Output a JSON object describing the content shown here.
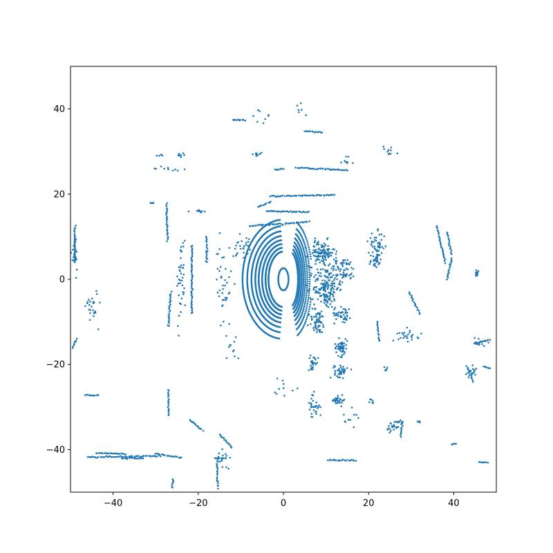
{
  "chart_data": {
    "type": "scatter",
    "title": "",
    "xlabel": "",
    "ylabel": "",
    "xlim": [
      -50,
      50
    ],
    "ylim": [
      -50,
      50
    ],
    "xticks": [
      -40,
      -20,
      0,
      20,
      40
    ],
    "yticks": [
      -40,
      -20,
      0,
      20,
      40
    ],
    "xtick_labels": [
      "−40",
      "−20",
      "0",
      "20",
      "40"
    ],
    "ytick_labels": [
      "−40",
      "−20",
      "0",
      "20",
      "40"
    ],
    "grid": false,
    "marker_color": "#1f77b4",
    "series": [
      {
        "description": "lidar point cloud (approximate)",
        "rings": {
          "center": [
            0,
            0
          ],
          "x_radii": [
            3.5,
            4.2,
            5.0,
            5.8,
            6.6,
            7.5,
            8.5,
            9.6
          ],
          "y_radii": [
            6.5,
            7.4,
            8.3,
            9.2,
            10.2,
            11.3,
            12.5,
            14.0
          ],
          "angle_range_deg": [
            95,
            265
          ]
        },
        "segments": [
          {
            "from": [
              -12,
              37.5
            ],
            "to": [
              -9,
              37.3
            ]
          },
          {
            "from": [
              5,
              34.8
            ],
            "to": [
              9,
              34.5
            ]
          },
          {
            "from": [
              3,
              26.2
            ],
            "to": [
              15,
              25.6
            ]
          },
          {
            "from": [
              -2,
              25.8
            ],
            "to": [
              0,
              25.9
            ]
          },
          {
            "from": [
              -6,
              17
            ],
            "to": [
              -3,
              18.2
            ]
          },
          {
            "from": [
              -3,
              19.5
            ],
            "to": [
              12,
              19.8
            ]
          },
          {
            "from": [
              -4,
              16
            ],
            "to": [
              6,
              15.8
            ]
          },
          {
            "from": [
              -8,
              12.5
            ],
            "to": [
              6,
              13.5
            ]
          },
          {
            "from": [
              -46.5,
              -27.2
            ],
            "to": [
              -43.5,
              -27.3
            ]
          },
          {
            "from": [
              -46,
              -41.8
            ],
            "to": [
              -29,
              -41.5
            ]
          },
          {
            "from": [
              -44,
              -40.8
            ],
            "to": [
              -37,
              -41
            ]
          },
          {
            "from": [
              -30,
              -40.9
            ],
            "to": [
              -24,
              -42
            ]
          },
          {
            "from": [
              -38,
              -42
            ],
            "to": [
              -33,
              -42
            ]
          },
          {
            "from": [
              -16,
              -42
            ],
            "to": [
              -14,
              -42
            ]
          },
          {
            "from": [
              10.5,
              -42.5
            ],
            "to": [
              17,
              -42.5
            ]
          },
          {
            "from": [
              -29.6,
              29
            ],
            "to": [
              -28.5,
              29.2
            ]
          },
          {
            "from": [
              -27.5,
              17.8
            ],
            "to": [
              -27.2,
              9
            ]
          },
          {
            "from": [
              -27,
              -26
            ],
            "to": [
              -27,
              -32
            ]
          },
          {
            "from": [
              -22,
              -33
            ],
            "to": [
              -19,
              -35.5
            ]
          },
          {
            "from": [
              -15,
              -36.5
            ],
            "to": [
              -12,
              -39.5
            ]
          },
          {
            "from": [
              -15.5,
              -42
            ],
            "to": [
              -15.5,
              -49
            ]
          },
          {
            "from": [
              -26,
              -47
            ],
            "to": [
              -26,
              -49
            ]
          },
          {
            "from": [
              -48.5,
              -14
            ],
            "to": [
              -49.5,
              -16
            ]
          },
          {
            "from": [
              -49,
              12
            ],
            "to": [
              -49,
              4
            ]
          },
          {
            "from": [
              36,
              12.5
            ],
            "to": [
              38,
              4
            ]
          },
          {
            "from": [
              38.5,
              11
            ],
            "to": [
              39.5,
              6
            ]
          },
          {
            "from": [
              39.5,
              5
            ],
            "to": [
              38.5,
              0
            ]
          },
          {
            "from": [
              -26.5,
              -3
            ],
            "to": [
              -27,
              -11
            ]
          },
          {
            "from": [
              -21.5,
              8
            ],
            "to": [
              -21.5,
              -8
            ]
          },
          {
            "from": [
              -18,
              10
            ],
            "to": [
              -18,
              4
            ]
          },
          {
            "from": [
              29.5,
              -3
            ],
            "to": [
              32,
              -8
            ]
          },
          {
            "from": [
              45,
              -15
            ],
            "to": [
              48.5,
              -14.2
            ]
          },
          {
            "from": [
              43,
              -20.5
            ],
            "to": [
              44.5,
              -24
            ]
          },
          {
            "from": [
              47,
              -20.5
            ],
            "to": [
              48.5,
              -21
            ]
          },
          {
            "from": [
              26,
              -33.5
            ],
            "to": [
              28,
              -33.5
            ]
          },
          {
            "from": [
              28,
              -33.5
            ],
            "to": [
              27.5,
              -37
            ]
          },
          {
            "from": [
              39.5,
              -38.8
            ],
            "to": [
              40.5,
              -38.5
            ]
          },
          {
            "from": [
              46,
              -43
            ],
            "to": [
              48,
              -43
            ]
          },
          {
            "from": [
              22,
              -10
            ],
            "to": [
              22.5,
              -14.5
            ]
          }
        ],
        "clusters": [
          {
            "center": [
              9,
              6
            ],
            "spread": [
              3,
              3
            ],
            "count": 120
          },
          {
            "center": [
              10,
              -2
            ],
            "spread": [
              3,
              5
            ],
            "count": 160
          },
          {
            "center": [
              8,
              -10
            ],
            "spread": [
              2,
              3
            ],
            "count": 60
          },
          {
            "center": [
              14,
              2
            ],
            "spread": [
              3,
              3
            ],
            "count": 70
          },
          {
            "center": [
              14,
              -8
            ],
            "spread": [
              2,
              2
            ],
            "count": 40
          },
          {
            "center": [
              13.5,
              -16
            ],
            "spread": [
              1.5,
              2
            ],
            "count": 50
          },
          {
            "center": [
              13.5,
              -21.5
            ],
            "spread": [
              1.5,
              1.5
            ],
            "count": 40
          },
          {
            "center": [
              13,
              -28.5
            ],
            "spread": [
              1.5,
              1
            ],
            "count": 30
          },
          {
            "center": [
              7,
              -19.5
            ],
            "spread": [
              1.2,
              1.5
            ],
            "count": 25
          },
          {
            "center": [
              7,
              -30
            ],
            "spread": [
              1.5,
              3
            ],
            "count": 30
          },
          {
            "center": [
              22,
              8
            ],
            "spread": [
              2,
              3
            ],
            "count": 50
          },
          {
            "center": [
              21.5,
              4
            ],
            "spread": [
              1.5,
              2
            ],
            "count": 30
          },
          {
            "center": [
              45.5,
              1.5
            ],
            "spread": [
              0.4,
              0.8
            ],
            "count": 12
          },
          {
            "center": [
              -45,
              -6
            ],
            "spread": [
              1.5,
              4
            ],
            "count": 25
          },
          {
            "center": [
              -49,
              6
            ],
            "spread": [
              0.7,
              5
            ],
            "count": 25
          },
          {
            "center": [
              29.5,
              -13
            ],
            "spread": [
              2.5,
              1.5
            ],
            "count": 25
          },
          {
            "center": [
              46,
              -14.8
            ],
            "spread": [
              1.5,
              1.5
            ],
            "count": 15
          },
          {
            "center": [
              44,
              -22
            ],
            "spread": [
              1.5,
              1.5
            ],
            "count": 18
          },
          {
            "center": [
              26,
              -35
            ],
            "spread": [
              2,
              1.5
            ],
            "count": 20
          },
          {
            "center": [
              -14,
              -42
            ],
            "spread": [
              1.5,
              3
            ],
            "count": 15
          },
          {
            "center": [
              -24,
              0
            ],
            "spread": [
              1,
              10
            ],
            "count": 40
          },
          {
            "center": [
              -14,
              -1
            ],
            "spread": [
              2,
              10
            ],
            "count": 40
          },
          {
            "center": [
              -10,
              8
            ],
            "spread": [
              2,
              3
            ],
            "count": 25
          },
          {
            "center": [
              -6,
              29.5
            ],
            "spread": [
              1.5,
              0.5
            ],
            "count": 10
          },
          {
            "center": [
              -24,
              29
            ],
            "spread": [
              1.5,
              0.5
            ],
            "count": 8
          },
          {
            "center": [
              -20,
              16
            ],
            "spread": [
              1.5,
              0.4
            ],
            "count": 10
          },
          {
            "center": [
              -27,
              26
            ],
            "spread": [
              3,
              0.4
            ],
            "count": 10
          },
          {
            "center": [
              -31,
              18
            ],
            "spread": [
              1,
              0.3
            ],
            "count": 6
          },
          {
            "center": [
              25,
              30
            ],
            "spread": [
              2,
              1.5
            ],
            "count": 10
          },
          {
            "center": [
              15,
              28
            ],
            "spread": [
              2,
              1.5
            ],
            "count": 8
          },
          {
            "center": [
              -5,
              38
            ],
            "spread": [
              2,
              2
            ],
            "count": 8
          },
          {
            "center": [
              4,
              40
            ],
            "spread": [
              1.5,
              2
            ],
            "count": 6
          },
          {
            "center": [
              24,
              -21
            ],
            "spread": [
              0.5,
              0.5
            ],
            "count": 5
          },
          {
            "center": [
              20,
              -28.5
            ],
            "spread": [
              1.5,
              1
            ],
            "count": 8
          },
          {
            "center": [
              32,
              -33.5
            ],
            "spread": [
              0.5,
              0.2
            ],
            "count": 4
          },
          {
            "center": [
              16,
              -33
            ],
            "spread": [
              2,
              2
            ],
            "count": 10
          },
          {
            "center": [
              -12,
              -16
            ],
            "spread": [
              2,
              3
            ],
            "count": 10
          },
          {
            "center": [
              0,
              -25
            ],
            "spread": [
              3,
              2
            ],
            "count": 10
          }
        ]
      }
    ]
  }
}
